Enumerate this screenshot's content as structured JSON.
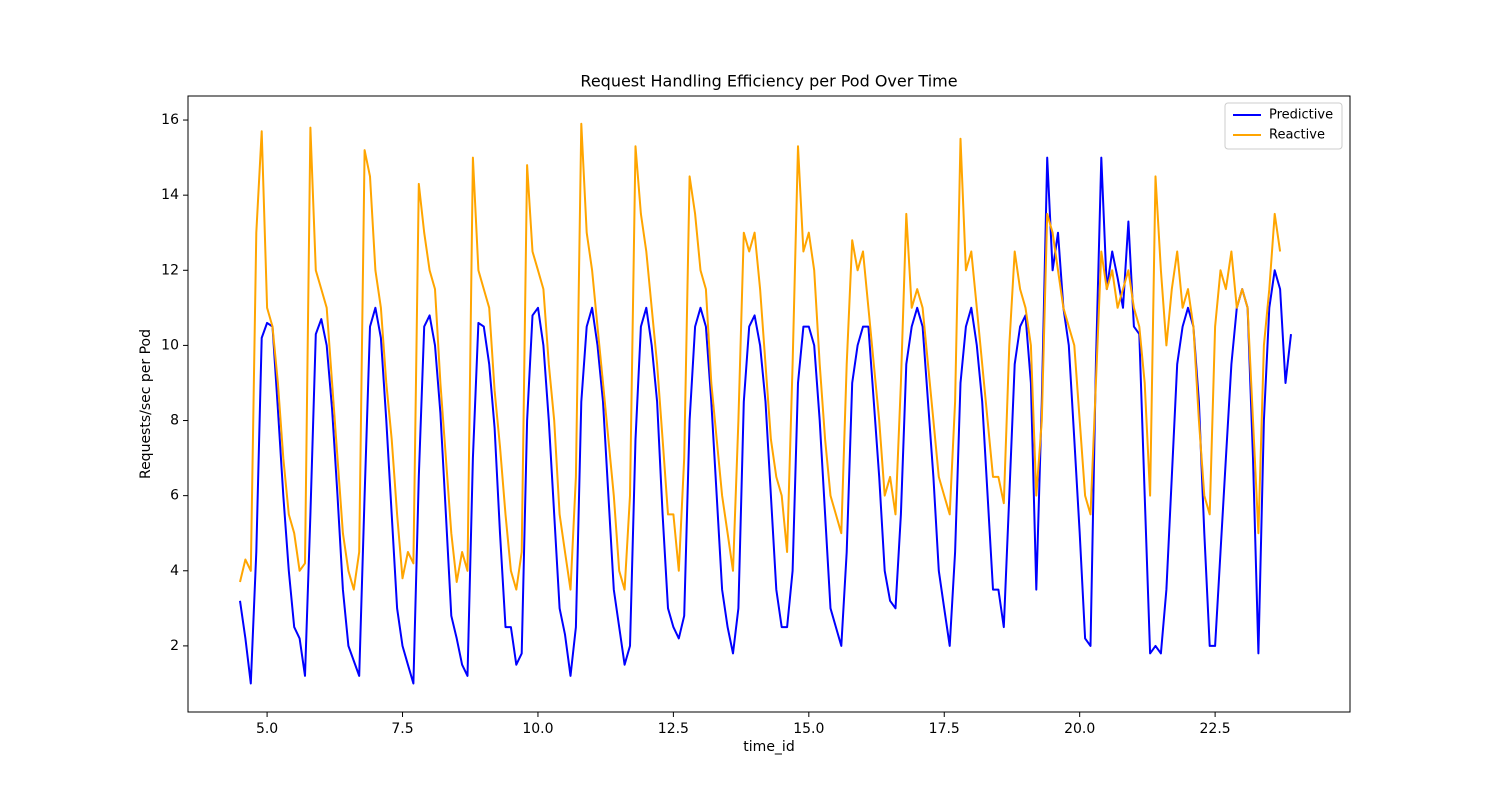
{
  "chart_data": {
    "type": "line",
    "title": "Request Handling Efficiency per Pod Over Time",
    "x_label": "time_id",
    "y_label": "Requests/sec per Pod",
    "xlim": [
      3.54,
      24.99
    ],
    "ylim": [
      0.24,
      16.64
    ],
    "xticks": [
      {
        "value": 5,
        "label": "5.0"
      },
      7.5,
      {
        "value": 10,
        "label": "10.0"
      },
      12.5,
      {
        "value": 15,
        "label": "15.0"
      },
      17.5,
      {
        "value": 20,
        "label": "20.0"
      },
      22.5
    ],
    "yticks": [
      2,
      4,
      6,
      8,
      10,
      12,
      14,
      16
    ],
    "grid": false,
    "legend": "upper right",
    "x": [
      4.5,
      4.6,
      4.7,
      4.8,
      4.9,
      5.0,
      5.1,
      5.2,
      5.3,
      5.4,
      5.5,
      5.6,
      5.7,
      5.8,
      5.9,
      6.0,
      6.1,
      6.2,
      6.3,
      6.4,
      6.5,
      6.6,
      6.7,
      6.8,
      6.9,
      7.0,
      7.1,
      7.2,
      7.3,
      7.4,
      7.5,
      7.6,
      7.7,
      7.8,
      7.9,
      8.0,
      8.1,
      8.2,
      8.3,
      8.4,
      8.5,
      8.6,
      8.7,
      8.8,
      8.9,
      9.0,
      9.1,
      9.2,
      9.3,
      9.4,
      9.5,
      9.6,
      9.7,
      9.8,
      9.9,
      10.0,
      10.1,
      10.2,
      10.3,
      10.4,
      10.5,
      10.6,
      10.7,
      10.8,
      10.9,
      11.0,
      11.1,
      11.2,
      11.3,
      11.4,
      11.5,
      11.6,
      11.7,
      11.8,
      11.9,
      12.0,
      12.1,
      12.2,
      12.3,
      12.4,
      12.5,
      12.6,
      12.7,
      12.8,
      12.9,
      13.0,
      13.1,
      13.2,
      13.3,
      13.4,
      13.5,
      13.6,
      13.7,
      13.8,
      13.9,
      14.0,
      14.1,
      14.2,
      14.3,
      14.4,
      14.5,
      14.6,
      14.7,
      14.8,
      14.9,
      15.0,
      15.1,
      15.2,
      15.3,
      15.4,
      15.5,
      15.6,
      15.7,
      15.8,
      15.9,
      16.0,
      16.1,
      16.2,
      16.3,
      16.4,
      16.5,
      16.6,
      16.7,
      16.8,
      16.9,
      17.0,
      17.1,
      17.2,
      17.3,
      17.4,
      17.5,
      17.6,
      17.7,
      17.8,
      17.9,
      18.0,
      18.1,
      18.2,
      18.3,
      18.4,
      18.5,
      18.6,
      18.7,
      18.8,
      18.9,
      19.0,
      19.1,
      19.2,
      19.3,
      19.4,
      19.5,
      19.6,
      19.7,
      19.8,
      19.9,
      20.0,
      20.1,
      20.2,
      20.3,
      20.4,
      20.5,
      20.6,
      20.7,
      20.8,
      20.9,
      21.0,
      21.1,
      21.2,
      21.3,
      21.4,
      21.5,
      21.6,
      21.7,
      21.8,
      21.9,
      22.0,
      22.1,
      22.2,
      22.3,
      22.4,
      22.5,
      22.6,
      22.7,
      22.8,
      22.9,
      23.0,
      23.1,
      23.2,
      23.3,
      23.4,
      23.5,
      23.6,
      23.7,
      23.8,
      23.9
    ],
    "series": [
      {
        "name": "Predictive",
        "color": "#0000ff",
        "values": [
          3.2,
          2.2,
          1.0,
          4.5,
          10.2,
          10.6,
          10.5,
          8.3,
          6.0,
          4.0,
          2.5,
          2.2,
          1.2,
          5.5,
          10.3,
          10.7,
          10.0,
          8.3,
          6.0,
          3.5,
          2.0,
          1.6,
          1.2,
          6.0,
          10.5,
          11.0,
          10.2,
          8.0,
          5.5,
          3.0,
          2.0,
          1.5,
          1.0,
          6.5,
          10.5,
          10.8,
          10.0,
          8.2,
          5.5,
          2.8,
          2.2,
          1.5,
          1.2,
          7.0,
          10.6,
          10.5,
          9.5,
          7.8,
          5.0,
          2.5,
          2.5,
          1.5,
          1.8,
          8.0,
          10.8,
          11.0,
          10.0,
          8.0,
          5.5,
          3.0,
          2.3,
          1.2,
          2.5,
          8.5,
          10.5,
          11.0,
          10.0,
          8.5,
          6.0,
          3.5,
          2.5,
          1.5,
          2.0,
          7.5,
          10.5,
          11.0,
          10.0,
          8.5,
          5.5,
          3.0,
          2.5,
          2.2,
          2.8,
          8.0,
          10.5,
          11.0,
          10.5,
          8.5,
          6.0,
          3.5,
          2.5,
          1.8,
          3.0,
          8.5,
          10.5,
          10.8,
          10.0,
          8.5,
          6.0,
          3.5,
          2.5,
          2.5,
          4.0,
          9.0,
          10.5,
          10.5,
          10.0,
          8.0,
          5.5,
          3.0,
          2.5,
          2.0,
          4.5,
          9.0,
          10.0,
          10.5,
          10.5,
          8.5,
          6.5,
          4.0,
          3.2,
          3.0,
          5.5,
          9.5,
          10.5,
          11.0,
          10.5,
          8.5,
          6.5,
          4.0,
          3.0,
          2.0,
          4.5,
          9.0,
          10.5,
          11.0,
          10.0,
          8.5,
          6.0,
          3.5,
          3.5,
          2.5,
          6.0,
          9.5,
          10.5,
          10.8,
          9.0,
          3.5,
          8.5,
          15.0,
          12.0,
          13.0,
          11.0,
          10.0,
          7.5,
          5.0,
          2.2,
          2.0,
          9.5,
          15.0,
          11.5,
          12.5,
          11.8,
          11.0,
          13.3,
          10.5,
          10.3,
          6.0,
          1.8,
          2.0,
          1.8,
          3.5,
          6.5,
          9.5,
          10.5,
          11.0,
          10.5,
          8.5,
          5.0,
          2.0,
          2.0,
          4.5,
          7.0,
          9.5,
          11.0,
          11.5,
          11.0,
          7.0,
          1.8,
          8.0,
          11.0,
          12.0,
          11.5,
          9.0,
          10.3
        ]
      },
      {
        "name": "Reactive",
        "color": "#ffa500",
        "values": [
          3.7,
          4.3,
          4.0,
          13.0,
          15.7,
          11.0,
          10.5,
          9.0,
          7.0,
          5.5,
          5.0,
          4.0,
          4.2,
          15.8,
          12.0,
          11.5,
          11.0,
          9.0,
          7.0,
          5.0,
          4.0,
          3.5,
          4.5,
          15.2,
          14.5,
          12.0,
          11.0,
          9.0,
          7.5,
          5.5,
          3.8,
          4.5,
          4.2,
          14.3,
          13.0,
          12.0,
          11.5,
          9.0,
          7.0,
          5.0,
          3.7,
          4.5,
          4.0,
          15.0,
          12.0,
          11.5,
          11.0,
          8.8,
          7.3,
          5.5,
          4.0,
          3.5,
          4.5,
          14.8,
          12.5,
          12.0,
          11.5,
          9.5,
          8.0,
          5.5,
          4.5,
          3.5,
          6.5,
          15.9,
          13.0,
          12.0,
          10.5,
          9.0,
          7.5,
          6.0,
          4.0,
          3.5,
          6.0,
          15.3,
          13.5,
          12.5,
          11.0,
          9.5,
          7.5,
          5.5,
          5.5,
          4.0,
          7.0,
          14.5,
          13.5,
          12.0,
          11.5,
          9.0,
          7.5,
          6.0,
          5.0,
          4.0,
          8.0,
          13.0,
          12.5,
          13.0,
          11.5,
          9.5,
          7.5,
          6.5,
          6.0,
          4.5,
          9.5,
          15.3,
          12.5,
          13.0,
          12.0,
          9.5,
          7.5,
          6.0,
          5.5,
          5.0,
          9.5,
          12.8,
          12.0,
          12.5,
          11.0,
          9.5,
          8.0,
          6.0,
          6.5,
          5.5,
          9.0,
          13.5,
          11.0,
          11.5,
          11.0,
          9.5,
          8.0,
          6.5,
          6.0,
          5.5,
          8.5,
          15.5,
          12.0,
          12.5,
          11.0,
          9.5,
          8.0,
          6.5,
          6.5,
          5.8,
          10.0,
          12.5,
          11.5,
          11.0,
          10.0,
          6.0,
          8.0,
          13.5,
          13.0,
          12.0,
          11.0,
          10.5,
          10.0,
          8.0,
          6.0,
          5.5,
          9.0,
          12.5,
          11.5,
          12.0,
          11.0,
          11.5,
          12.0,
          11.0,
          10.5,
          9.0,
          6.0,
          14.5,
          12.0,
          10.0,
          11.5,
          12.5,
          11.0,
          11.5,
          10.5,
          8.0,
          6.0,
          5.5,
          10.5,
          12.0,
          11.5,
          12.5,
          11.0,
          11.5,
          11.0,
          8.0,
          5.0,
          10.0,
          11.5,
          13.5,
          12.5,
          null,
          null
        ]
      }
    ]
  }
}
